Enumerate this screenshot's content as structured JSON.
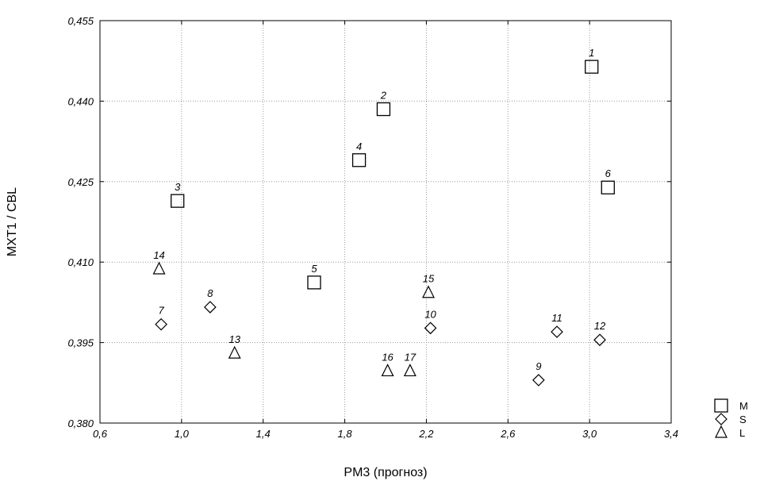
{
  "chart_data": {
    "type": "scatter",
    "title": "",
    "xlabel": "PM3 (прогноз)",
    "ylabel": "MXT1 / CBL",
    "xlim": [
      0.6,
      3.4
    ],
    "ylim": [
      0.38,
      0.455
    ],
    "x_ticks": [
      "0,6",
      "1,0",
      "1,4",
      "1,8",
      "2,2",
      "2,6",
      "3,0",
      "3,4"
    ],
    "y_ticks": [
      "0,380",
      "0,395",
      "0,410",
      "0,425",
      "0,440",
      "0,455"
    ],
    "x_tick_values": [
      0.6,
      1.0,
      1.4,
      1.8,
      2.2,
      2.6,
      3.0,
      3.4
    ],
    "y_tick_values": [
      0.38,
      0.395,
      0.41,
      0.425,
      0.44,
      0.455
    ],
    "grid": true,
    "legend_position": "bottom-right outside",
    "series": [
      {
        "name": "M",
        "marker": "square",
        "points": [
          {
            "label": "1",
            "x": 3.01,
            "y": 0.4464
          },
          {
            "label": "2",
            "x": 1.99,
            "y": 0.4385
          },
          {
            "label": "3",
            "x": 0.98,
            "y": 0.4214
          },
          {
            "label": "4",
            "x": 1.87,
            "y": 0.429
          },
          {
            "label": "5",
            "x": 1.65,
            "y": 0.4062
          },
          {
            "label": "6",
            "x": 3.09,
            "y": 0.4239
          }
        ]
      },
      {
        "name": "S",
        "marker": "diamond",
        "points": [
          {
            "label": "7",
            "x": 0.9,
            "y": 0.3984
          },
          {
            "label": "8",
            "x": 1.14,
            "y": 0.4016
          },
          {
            "label": "9",
            "x": 2.75,
            "y": 0.388
          },
          {
            "label": "10",
            "x": 2.22,
            "y": 0.3977
          },
          {
            "label": "11",
            "x": 2.84,
            "y": 0.397
          },
          {
            "label": "12",
            "x": 3.05,
            "y": 0.3955
          }
        ]
      },
      {
        "name": "L",
        "marker": "triangle",
        "points": [
          {
            "label": "13",
            "x": 1.26,
            "y": 0.393
          },
          {
            "label": "14",
            "x": 0.89,
            "y": 0.4087
          },
          {
            "label": "15",
            "x": 2.21,
            "y": 0.4043
          },
          {
            "label": "16",
            "x": 2.01,
            "y": 0.3897
          },
          {
            "label": "17",
            "x": 2.12,
            "y": 0.3897
          }
        ]
      }
    ]
  },
  "colors": {
    "background": "#ffffff",
    "axis": "#000000",
    "grid": "#9a9a9a",
    "marker": "#000000"
  }
}
